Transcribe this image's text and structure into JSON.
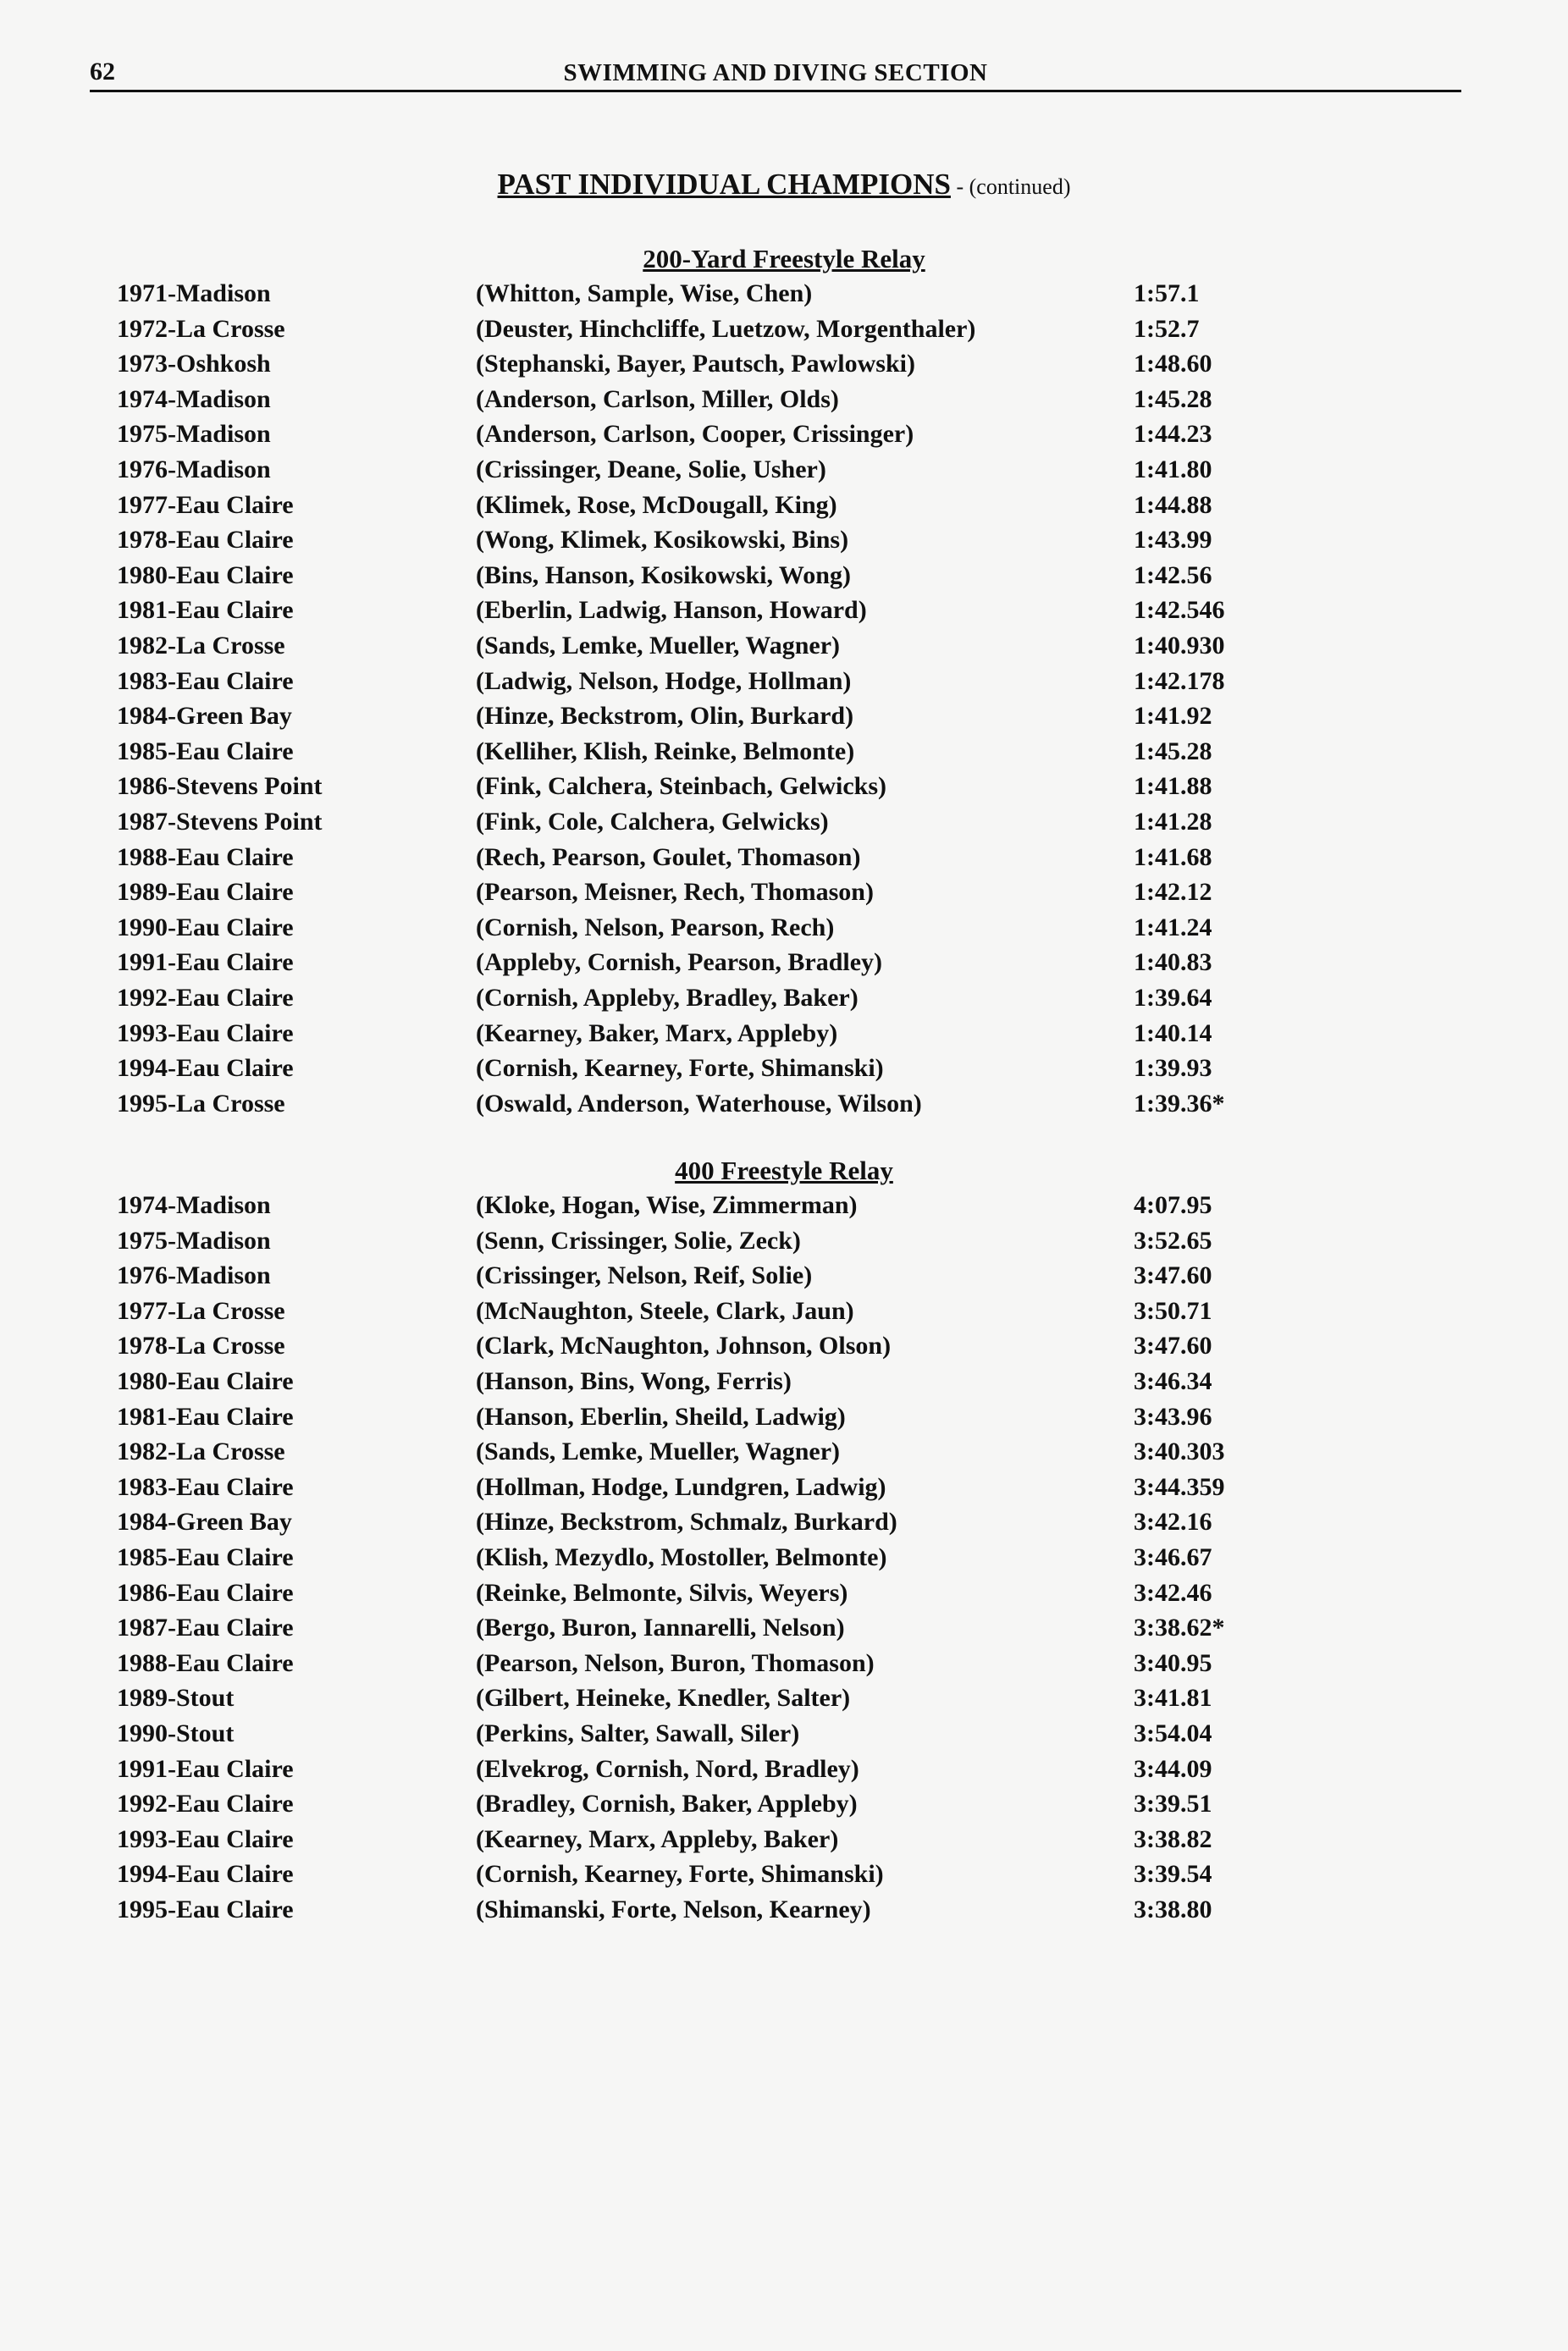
{
  "header": {
    "page_number": "62",
    "section_title": "SWIMMING AND DIVING SECTION"
  },
  "title": {
    "main": "PAST INDIVIDUAL CHAMPIONS",
    "continued": " - (continued)"
  },
  "sections": [
    {
      "heading": "200-Yard Freestyle Relay",
      "rows": [
        [
          "1971-Madison",
          "(Whitton, Sample, Wise, Chen)",
          "1:57.1"
        ],
        [
          "1972-La Crosse",
          "(Deuster, Hinchcliffe, Luetzow, Morgenthaler)",
          "1:52.7"
        ],
        [
          "1973-Oshkosh",
          "(Stephanski, Bayer, Pautsch, Pawlowski)",
          "1:48.60"
        ],
        [
          "1974-Madison",
          "(Anderson, Carlson, Miller, Olds)",
          "1:45.28"
        ],
        [
          "1975-Madison",
          "(Anderson, Carlson, Cooper, Crissinger)",
          "1:44.23"
        ],
        [
          "1976-Madison",
          "(Crissinger, Deane, Solie, Usher)",
          "1:41.80"
        ],
        [
          "1977-Eau Claire",
          "(Klimek, Rose, McDougall, King)",
          "1:44.88"
        ],
        [
          "1978-Eau Claire",
          "(Wong, Klimek, Kosikowski, Bins)",
          "1:43.99"
        ],
        [
          "1980-Eau Claire",
          "(Bins, Hanson, Kosikowski, Wong)",
          "1:42.56"
        ],
        [
          "1981-Eau Claire",
          "(Eberlin, Ladwig, Hanson, Howard)",
          "1:42.546"
        ],
        [
          "1982-La Crosse",
          "(Sands, Lemke, Mueller, Wagner)",
          "1:40.930"
        ],
        [
          "1983-Eau Claire",
          "(Ladwig, Nelson, Hodge, Hollman)",
          "1:42.178"
        ],
        [
          "1984-Green Bay",
          "(Hinze, Beckstrom, Olin, Burkard)",
          "1:41.92"
        ],
        [
          "1985-Eau Claire",
          "(Kelliher, Klish, Reinke, Belmonte)",
          "1:45.28"
        ],
        [
          "1986-Stevens Point",
          "(Fink, Calchera, Steinbach, Gelwicks)",
          "1:41.88"
        ],
        [
          "1987-Stevens Point",
          "(Fink, Cole, Calchera, Gelwicks)",
          "1:41.28"
        ],
        [
          "1988-Eau Claire",
          "(Rech, Pearson, Goulet, Thomason)",
          "1:41.68"
        ],
        [
          "1989-Eau Claire",
          "(Pearson, Meisner, Rech, Thomason)",
          "1:42.12"
        ],
        [
          "1990-Eau Claire",
          "(Cornish, Nelson, Pearson, Rech)",
          "1:41.24"
        ],
        [
          "1991-Eau Claire",
          "(Appleby, Cornish, Pearson, Bradley)",
          "1:40.83"
        ],
        [
          "1992-Eau Claire",
          "(Cornish, Appleby, Bradley, Baker)",
          "1:39.64"
        ],
        [
          "1993-Eau Claire",
          "(Kearney, Baker, Marx, Appleby)",
          "1:40.14"
        ],
        [
          "1994-Eau Claire",
          "(Cornish, Kearney, Forte, Shimanski)",
          "1:39.93"
        ],
        [
          "1995-La Crosse",
          "(Oswald, Anderson, Waterhouse, Wilson)",
          "1:39.36*"
        ]
      ]
    },
    {
      "heading": "400 Freestyle Relay",
      "rows": [
        [
          "1974-Madison",
          "(Kloke, Hogan, Wise, Zimmerman)",
          "4:07.95"
        ],
        [
          "1975-Madison",
          "(Senn, Crissinger, Solie, Zeck)",
          "3:52.65"
        ],
        [
          "1976-Madison",
          "(Crissinger, Nelson, Reif, Solie)",
          "3:47.60"
        ],
        [
          "1977-La Crosse",
          "(McNaughton, Steele, Clark, Jaun)",
          "3:50.71"
        ],
        [
          "1978-La Crosse",
          "(Clark, McNaughton, Johnson, Olson)",
          "3:47.60"
        ],
        [
          "1980-Eau Claire",
          "(Hanson, Bins, Wong, Ferris)",
          "3:46.34"
        ],
        [
          "1981-Eau Claire",
          "(Hanson, Eberlin, Sheild, Ladwig)",
          "3:43.96"
        ],
        [
          "1982-La Crosse",
          "(Sands, Lemke, Mueller, Wagner)",
          "3:40.303"
        ],
        [
          "1983-Eau Claire",
          "(Hollman, Hodge, Lundgren, Ladwig)",
          "3:44.359"
        ],
        [
          "1984-Green Bay",
          "(Hinze, Beckstrom, Schmalz, Burkard)",
          "3:42.16"
        ],
        [
          "1985-Eau Claire",
          "(Klish, Mezydlo, Mostoller, Belmonte)",
          "3:46.67"
        ],
        [
          "1986-Eau Claire",
          "(Reinke, Belmonte, Silvis, Weyers)",
          "3:42.46"
        ],
        [
          "1987-Eau Claire",
          "(Bergo, Buron, Iannarelli, Nelson)",
          "3:38.62*"
        ],
        [
          "1988-Eau Claire",
          "(Pearson, Nelson, Buron, Thomason)",
          "3:40.95"
        ],
        [
          "1989-Stout",
          "(Gilbert, Heineke, Knedler, Salter)",
          "3:41.81"
        ],
        [
          "1990-Stout",
          "(Perkins, Salter, Sawall, Siler)",
          "3:54.04"
        ],
        [
          "1991-Eau Claire",
          "(Elvekrog, Cornish, Nord, Bradley)",
          "3:44.09"
        ],
        [
          "1992-Eau Claire",
          "(Bradley, Cornish, Baker, Appleby)",
          "3:39.51"
        ],
        [
          "1993-Eau Claire",
          "(Kearney, Marx, Appleby, Baker)",
          "3:38.82"
        ],
        [
          "1994-Eau Claire",
          "(Cornish, Kearney, Forte, Shimanski)",
          "3:39.54"
        ],
        [
          "1995-Eau Claire",
          "(Shimanski, Forte, Nelson, Kearney)",
          "3:38.80"
        ]
      ]
    }
  ]
}
